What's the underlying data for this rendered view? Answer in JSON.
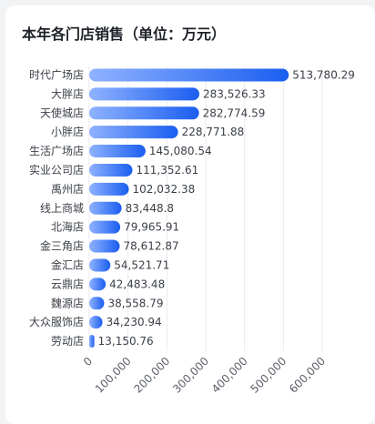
{
  "card": {
    "title": "本年各门店销售（单位：万元）"
  },
  "chart_data": {
    "type": "bar",
    "orientation": "horizontal",
    "title": "本年各门店销售（单位：万元）",
    "categories": [
      "时代广场店",
      "大胖店",
      "天使城店",
      "小胖店",
      "生活广场店",
      "实业公司店",
      "禹州店",
      "线上商城",
      "北海店",
      "金三角店",
      "金汇店",
      "云鼎店",
      "魏源店",
      "大众服饰店",
      "劳动店"
    ],
    "values": [
      513780.29,
      283526.33,
      282774.59,
      228771.88,
      145080.54,
      111352.61,
      102032.38,
      83448.8,
      79965.91,
      78612.87,
      54521.71,
      42483.48,
      38558.79,
      34230.94,
      13150.76
    ],
    "value_labels": [
      "513,780.29",
      "283,526.33",
      "282,774.59",
      "228,771.88",
      "145,080.54",
      "111,352.61",
      "102,032.38",
      "83,448.8",
      "79,965.91",
      "78,612.87",
      "54,521.71",
      "42,483.48",
      "38,558.79",
      "34,230.94",
      "13,150.76"
    ],
    "x_ticks": [
      0,
      100000,
      200000,
      300000,
      400000,
      500000,
      600000
    ],
    "x_tick_labels": [
      "0",
      "100,000",
      "200,000",
      "300,000",
      "400,000",
      "500,000",
      "600,000"
    ],
    "xlim": [
      0,
      600000
    ],
    "grid": "vertical",
    "legend": "none",
    "colors": {
      "bar_start": "#8fb2ff",
      "bar_end": "#1a5ef0",
      "grid": "#e8eaee"
    }
  }
}
